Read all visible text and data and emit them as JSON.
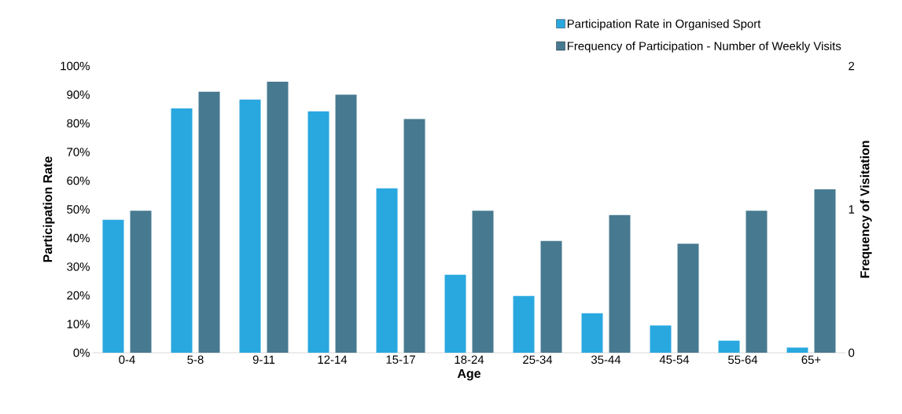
{
  "chart_data": {
    "type": "bar",
    "xlabel": "Age",
    "ylabel": "Participation Rate",
    "y2label": "Frequency of Visitation",
    "categories": [
      "0-4",
      "5-8",
      "9-11",
      "12-14",
      "15-17",
      "18-24",
      "25-34",
      "35-44",
      "45-54",
      "55-64",
      "65+"
    ],
    "series": [
      {
        "name": "Participation Rate in Organised Sport",
        "color": "#29a8e0",
        "values": [
          46.4,
          85.2,
          88.3,
          84.2,
          57.3,
          27.2,
          19.8,
          13.8,
          9.5,
          4.2,
          1.8
        ]
      },
      {
        "name": "Frequency of Participation - Number of Weekly Visits",
        "color": "#477a90",
        "axis": "y2",
        "values": [
          0.99,
          1.82,
          1.89,
          1.8,
          1.63,
          0.99,
          0.78,
          0.96,
          0.76,
          0.99,
          1.14
        ]
      }
    ],
    "ylim": [
      0,
      100
    ],
    "yticks": [
      {
        "value": 0,
        "label": "0%"
      },
      {
        "value": 10,
        "label": "10%"
      },
      {
        "value": 20,
        "label": "20%"
      },
      {
        "value": 30,
        "label": "30%"
      },
      {
        "value": 40,
        "label": "40%"
      },
      {
        "value": 50,
        "label": "50%"
      },
      {
        "value": 60,
        "label": "60%"
      },
      {
        "value": 70,
        "label": "70%"
      },
      {
        "value": 80,
        "label": "80%"
      },
      {
        "value": 90,
        "label": "90%"
      },
      {
        "value": 100,
        "label": "100%"
      }
    ],
    "y2lim": [
      0,
      2
    ],
    "y2ticks": [
      0,
      1,
      2
    ],
    "legend": "top right"
  }
}
